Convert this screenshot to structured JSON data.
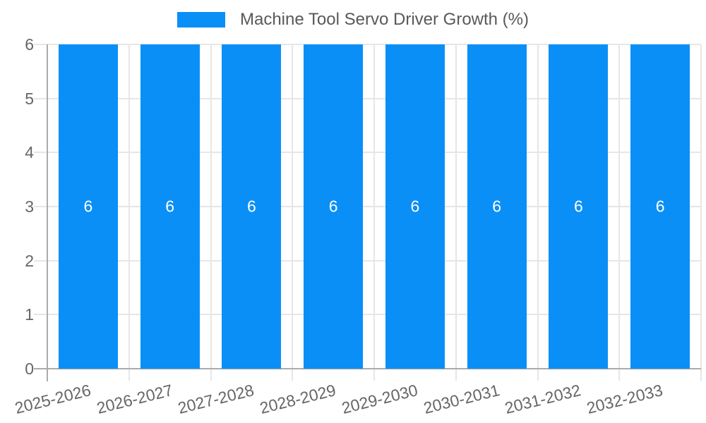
{
  "chart_data": {
    "type": "bar",
    "title": "Machine Tool Servo Driver Growth (%)",
    "legend_position": "top",
    "categories": [
      "2025-2026",
      "2026-2027",
      "2027-2028",
      "2028-2029",
      "2029-2030",
      "2030-2031",
      "2031-2032",
      "2032-2033"
    ],
    "values": [
      6,
      6,
      6,
      6,
      6,
      6,
      6,
      6
    ],
    "bar_value_labels": [
      "6",
      "6",
      "6",
      "6",
      "6",
      "6",
      "6",
      "6"
    ],
    "xlabel": "",
    "ylabel": "",
    "ylim": [
      0,
      6
    ],
    "y_ticks": [
      "0",
      "1",
      "2",
      "3",
      "4",
      "5",
      "6"
    ],
    "grid": "on",
    "colors": {
      "bar": "#0a8ff7",
      "grid": "#e6e6e6",
      "axis": "#ababab",
      "tick_text": "#666666",
      "legend_text": "#595959",
      "value_text": "#ffffff",
      "background": "#ffffff"
    }
  }
}
